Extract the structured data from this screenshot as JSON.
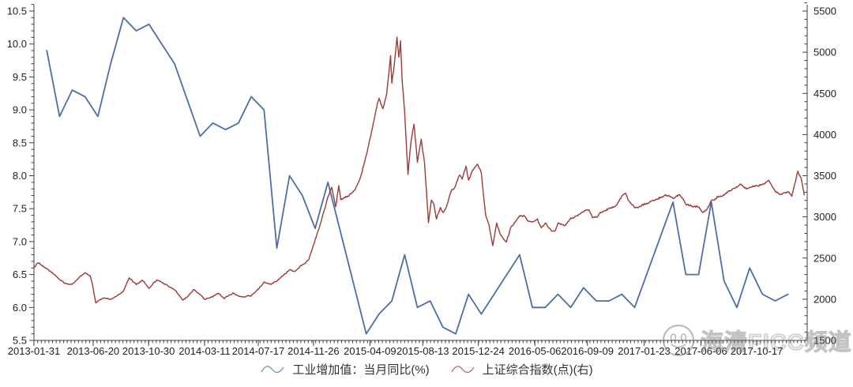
{
  "page": {
    "background": "#ffffff"
  },
  "chart_data": {
    "type": "line",
    "title": "",
    "grid": false,
    "legend_position": "bottom-center",
    "axis_color": "#404040",
    "label_color": "#1f1f1f",
    "x_axis": {
      "unit": "months_since_2013-01-31",
      "domain": [
        0,
        60.5
      ],
      "minor_tick_step": 0.29,
      "tick_positions": [
        0,
        4.63,
        8.97,
        13.35,
        17.55,
        21.87,
        26.29,
        30.42,
        34.77,
        39.19,
        43.3,
        47.74,
        52.19,
        56.55
      ],
      "tick_labels": [
        "2013-01-31",
        "2013-06-20",
        "2013-10-30",
        "2014-03-11",
        "2014-07-17",
        "2014-11-26",
        "2015-04-09",
        "2015-08-13",
        "2015-12-24",
        "2016-05-06",
        "2016-09-09",
        "2017-01-23",
        "2017-06-06",
        "2017-10-17"
      ]
    },
    "y_axis_left": {
      "min": 5.5,
      "max": 10.5,
      "major_step": 0.5,
      "minor_step": 0.1,
      "tick_labels": [
        "5.5",
        "6.0",
        "6.5",
        "7.0",
        "7.5",
        "8.0",
        "8.5",
        "9.0",
        "9.5",
        "10.0",
        "10.5"
      ]
    },
    "y_axis_right": {
      "min": 1500,
      "max": 5500,
      "major_step": 500,
      "minor_step": 100,
      "tick_labels": [
        "1500",
        "2000",
        "2500",
        "3000",
        "3500",
        "4000",
        "4500",
        "5000",
        "5500"
      ]
    },
    "series": [
      {
        "name": "工业增加值：当月同比(%)",
        "axis": "left",
        "color": "#4b6fa6",
        "stroke_width": 1.8,
        "style": "monthly-line",
        "points": [
          [
            1,
            9.9
          ],
          [
            2,
            8.9
          ],
          [
            3,
            9.3
          ],
          [
            4,
            9.2
          ],
          [
            5,
            8.9
          ],
          [
            6,
            9.7
          ],
          [
            7,
            10.4
          ],
          [
            8,
            10.2
          ],
          [
            9,
            10.3
          ],
          [
            10,
            10.0
          ],
          [
            11,
            9.7
          ],
          [
            13,
            8.6
          ],
          [
            14,
            8.8
          ],
          [
            15,
            8.7
          ],
          [
            16,
            8.8
          ],
          [
            17,
            9.2
          ],
          [
            18,
            9.0
          ],
          [
            19,
            6.9
          ],
          [
            20,
            8.0
          ],
          [
            21,
            7.7
          ],
          [
            22,
            7.2
          ],
          [
            23,
            7.9
          ],
          [
            26,
            5.6
          ],
          [
            27,
            5.9
          ],
          [
            28,
            6.1
          ],
          [
            29,
            6.8
          ],
          [
            30,
            6.0
          ],
          [
            31,
            6.1
          ],
          [
            32,
            5.7
          ],
          [
            33,
            5.6
          ],
          [
            34,
            6.2
          ],
          [
            35,
            5.9
          ],
          [
            38,
            6.8
          ],
          [
            39,
            6.0
          ],
          [
            40,
            6.0
          ],
          [
            41,
            6.2
          ],
          [
            42,
            6.0
          ],
          [
            43,
            6.3
          ],
          [
            44,
            6.1
          ],
          [
            45,
            6.1
          ],
          [
            46,
            6.2
          ],
          [
            47,
            6.0
          ],
          [
            50,
            7.6
          ],
          [
            51,
            6.5
          ],
          [
            52,
            6.5
          ],
          [
            53,
            7.6
          ],
          [
            54,
            6.4
          ],
          [
            55,
            6.0
          ],
          [
            56,
            6.6
          ],
          [
            57,
            6.2
          ],
          [
            58,
            6.1
          ],
          [
            59,
            6.2
          ]
        ]
      },
      {
        "name": "上证综合指数(点)(右)",
        "axis": "right",
        "color": "#9e3a38",
        "stroke_width": 1.4,
        "style": "daily-line",
        "points": [
          [
            0,
            2385
          ],
          [
            0.3,
            2444
          ],
          [
            0.6,
            2410
          ],
          [
            1,
            2365
          ],
          [
            1.5,
            2310
          ],
          [
            2,
            2236
          ],
          [
            2.5,
            2185
          ],
          [
            3,
            2177
          ],
          [
            3.6,
            2270
          ],
          [
            4,
            2321
          ],
          [
            4.4,
            2290
          ],
          [
            4.6,
            2160
          ],
          [
            4.83,
            1950
          ],
          [
            5,
            1979
          ],
          [
            5.5,
            2010
          ],
          [
            6,
            1994
          ],
          [
            6.5,
            2050
          ],
          [
            7,
            2098
          ],
          [
            7.45,
            2256
          ],
          [
            8,
            2175
          ],
          [
            8.5,
            2230
          ],
          [
            9,
            2141
          ],
          [
            9.6,
            2230
          ],
          [
            10,
            2220
          ],
          [
            10.5,
            2160
          ],
          [
            11,
            2116
          ],
          [
            11.65,
            1991
          ],
          [
            12,
            2033
          ],
          [
            12.5,
            2115
          ],
          [
            13,
            2056
          ],
          [
            13.4,
            1997
          ],
          [
            14,
            2033
          ],
          [
            14.45,
            2078
          ],
          [
            14.9,
            2003
          ],
          [
            15,
            2026
          ],
          [
            15.6,
            2075
          ],
          [
            16,
            2039
          ],
          [
            16.5,
            2025
          ],
          [
            17,
            2048
          ],
          [
            17.6,
            2130
          ],
          [
            18,
            2201
          ],
          [
            18.5,
            2185
          ],
          [
            19,
            2217
          ],
          [
            19.5,
            2290
          ],
          [
            20,
            2364
          ],
          [
            20.4,
            2340
          ],
          [
            21,
            2420
          ],
          [
            21.5,
            2480
          ],
          [
            21.93,
            2683
          ],
          [
            22.3,
            2856
          ],
          [
            22.6,
            3021
          ],
          [
            23,
            3235
          ],
          [
            23.3,
            3350
          ],
          [
            23.6,
            3116
          ],
          [
            23.85,
            3383
          ],
          [
            24,
            3210
          ],
          [
            24.5,
            3250
          ],
          [
            25,
            3310
          ],
          [
            25.5,
            3435
          ],
          [
            25.8,
            3617
          ],
          [
            26,
            3748
          ],
          [
            26.5,
            4100
          ],
          [
            26.9,
            4393
          ],
          [
            27,
            4442
          ],
          [
            27.3,
            4300
          ],
          [
            27.6,
            4480
          ],
          [
            27.9,
            4941
          ],
          [
            28,
            4620
          ],
          [
            28.2,
            4850
          ],
          [
            28.4,
            5166
          ],
          [
            28.55,
            4910
          ],
          [
            28.68,
            5120
          ],
          [
            28.8,
            4690
          ],
          [
            29,
            4277
          ],
          [
            29.26,
            3507
          ],
          [
            29.5,
            3900
          ],
          [
            29.74,
            4123
          ],
          [
            30,
            3664
          ],
          [
            30.3,
            3950
          ],
          [
            30.55,
            3663
          ],
          [
            30.8,
            3100
          ],
          [
            30.87,
            2927
          ],
          [
            31.1,
            3206
          ],
          [
            31.3,
            3160
          ],
          [
            31.5,
            2983
          ],
          [
            31.8,
            3100
          ],
          [
            32,
            3052
          ],
          [
            32.3,
            3140
          ],
          [
            32.6,
            3300
          ],
          [
            33,
            3383
          ],
          [
            33.3,
            3520
          ],
          [
            33.5,
            3475
          ],
          [
            33.8,
            3616
          ],
          [
            34,
            3445
          ],
          [
            34.3,
            3560
          ],
          [
            34.7,
            3651
          ],
          [
            35,
            3539
          ],
          [
            35.15,
            3296
          ],
          [
            35.35,
            3016
          ],
          [
            35.6,
            2900
          ],
          [
            35.9,
            2655
          ],
          [
            36.2,
            2932
          ],
          [
            36.5,
            2780
          ],
          [
            36.95,
            2688
          ],
          [
            37.3,
            2870
          ],
          [
            37.6,
            2930
          ],
          [
            38,
            3004
          ],
          [
            38.4,
            3010
          ],
          [
            38.7,
            2945
          ],
          [
            39,
            2938
          ],
          [
            39.4,
            2980
          ],
          [
            39.7,
            2860
          ],
          [
            40,
            2917
          ],
          [
            40.5,
            2830
          ],
          [
            40.8,
            2822
          ],
          [
            41,
            2930
          ],
          [
            41.5,
            2890
          ],
          [
            42,
            2979
          ],
          [
            42.5,
            3010
          ],
          [
            43,
            3070
          ],
          [
            43.4,
            3090
          ],
          [
            43.7,
            3002
          ],
          [
            44,
            3005
          ],
          [
            44.4,
            3048
          ],
          [
            45,
            3100
          ],
          [
            45.5,
            3130
          ],
          [
            46,
            3250
          ],
          [
            46.3,
            3282
          ],
          [
            46.7,
            3155
          ],
          [
            47,
            3104
          ],
          [
            47.4,
            3135
          ],
          [
            48,
            3159
          ],
          [
            48.5,
            3200
          ],
          [
            49,
            3242
          ],
          [
            49.4,
            3260
          ],
          [
            50,
            3223
          ],
          [
            50.5,
            3270
          ],
          [
            51,
            3155
          ],
          [
            51.4,
            3130
          ],
          [
            52,
            3117
          ],
          [
            52.35,
            3052
          ],
          [
            52.7,
            3100
          ],
          [
            53,
            3192
          ],
          [
            53.5,
            3240
          ],
          [
            54,
            3273
          ],
          [
            54.5,
            3320
          ],
          [
            55,
            3361
          ],
          [
            55.3,
            3385
          ],
          [
            55.6,
            3340
          ],
          [
            56,
            3349
          ],
          [
            56.5,
            3380
          ],
          [
            57,
            3393
          ],
          [
            57.5,
            3430
          ],
          [
            58,
            3317
          ],
          [
            58.4,
            3280
          ],
          [
            59,
            3307
          ],
          [
            59.3,
            3250
          ],
          [
            59.77,
            3559
          ],
          [
            60.05,
            3462
          ],
          [
            60.27,
            3262
          ]
        ]
      }
    ]
  },
  "watermark": {
    "text": "海清FICC频道",
    "icons": [
      "smiley-face-icon",
      "article-page-icon"
    ],
    "color": "#7d7d7d"
  }
}
